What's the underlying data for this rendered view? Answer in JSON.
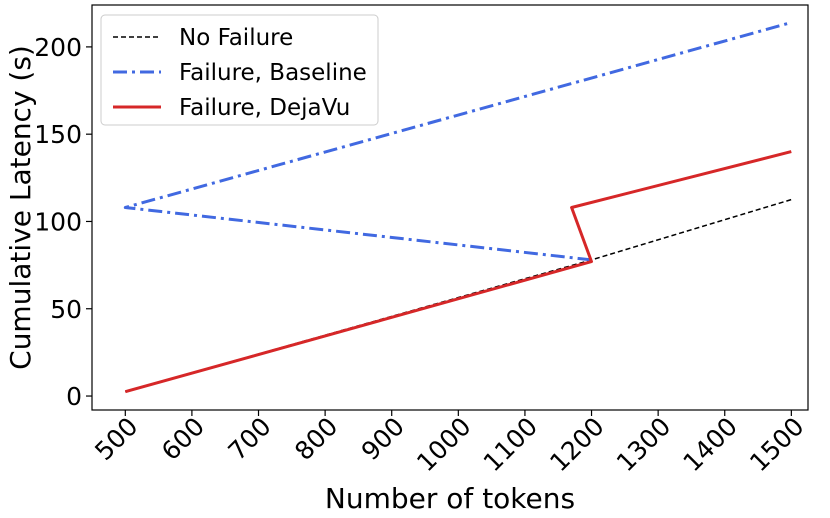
{
  "chart_data": {
    "type": "line",
    "title": "",
    "xlabel": "Number of tokens",
    "ylabel": "Cumulative Latency (s)",
    "xlim": [
      450,
      1525
    ],
    "ylim": [
      -8,
      224
    ],
    "xticks": [
      500,
      600,
      700,
      800,
      900,
      1000,
      1100,
      1200,
      1300,
      1400,
      1500
    ],
    "yticks": [
      0,
      50,
      100,
      150,
      200
    ],
    "grid": false,
    "legend_position": "top-left",
    "series": [
      {
        "name": "No Failure",
        "color": "#000000",
        "style": "dashed",
        "points": [
          [
            500,
            2.5
          ],
          [
            1200,
            78
          ],
          [
            1500,
            112.5
          ]
        ]
      },
      {
        "name": "Failure, Baseline",
        "color": "#4169E1",
        "style": "dashdot",
        "points": [
          [
            1200,
            78
          ],
          [
            500,
            108
          ],
          [
            1500,
            214
          ]
        ]
      },
      {
        "name": "Failure, DejaVu",
        "color": "#D62728",
        "style": "solid",
        "points": [
          [
            500,
            2.5
          ],
          [
            1200,
            77
          ],
          [
            1170,
            108
          ],
          [
            1500,
            140
          ]
        ]
      }
    ]
  }
}
